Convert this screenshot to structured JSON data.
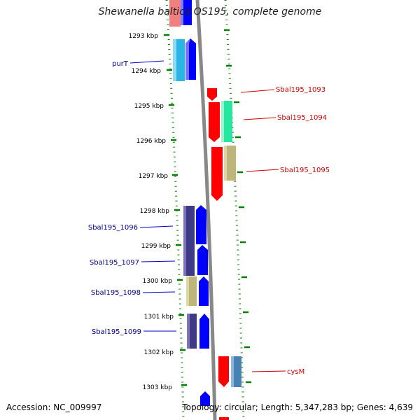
{
  "title": "Shewanella baltica OS195, complete genome",
  "accession": "Accession: NC_009997",
  "summary": "Topology: circular; Length: 5,347,283 bp; Genes: 4,639",
  "colors": {
    "backbone": "#808080",
    "tick": "#008000",
    "forward_strand": "#0000ff",
    "reverse_strand": "#ff0000",
    "label_forward": "#00008b",
    "label_reverse": "#cc0000"
  },
  "scale": {
    "unit": "kbp",
    "ticks": [
      "1293 kbp",
      "1294 kbp",
      "1295 kbp",
      "1296 kbp",
      "1297 kbp",
      "1298 kbp",
      "1299 kbp",
      "1300 kbp",
      "1301 kbp",
      "1302 kbp",
      "1303 kbp"
    ]
  },
  "gene_labels": [
    {
      "name": "purT",
      "side": "left"
    },
    {
      "name": "Sbal195_1093",
      "side": "right"
    },
    {
      "name": "Sbal195_1094",
      "side": "right"
    },
    {
      "name": "Sbal195_1095",
      "side": "right"
    },
    {
      "name": "Sbal195_1096",
      "side": "left"
    },
    {
      "name": "Sbal195_1097",
      "side": "left"
    },
    {
      "name": "Sbal195_1098",
      "side": "left"
    },
    {
      "name": "Sbal195_1099",
      "side": "left"
    },
    {
      "name": "cysM",
      "side": "right"
    }
  ]
}
